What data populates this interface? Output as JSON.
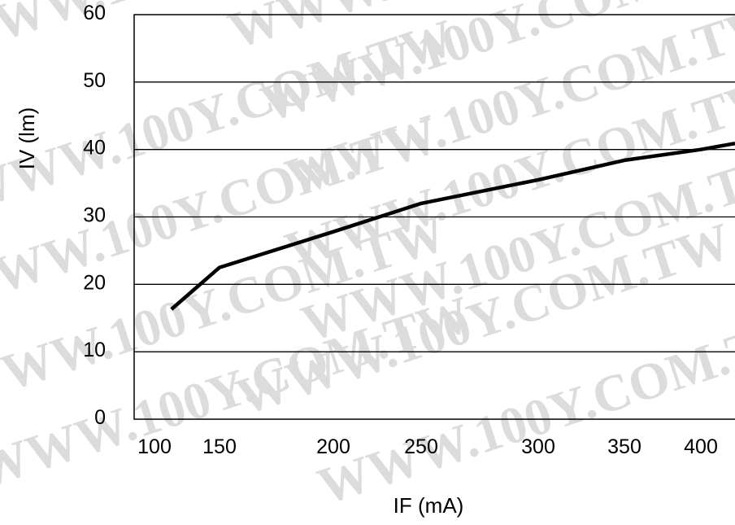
{
  "watermark_text": "WWW.100Y.COM.TW",
  "chart_data": {
    "type": "line",
    "xlabel": "IF (mA)",
    "ylabel": "IV (lm)",
    "xlim": [
      100,
      400
    ],
    "ylim": [
      0,
      60
    ],
    "x_ticks": [
      "100",
      "150",
      "200",
      "250",
      "300",
      "350",
      "400"
    ],
    "y_ticks": [
      "0",
      "10",
      "20",
      "30",
      "40",
      "50",
      "60"
    ],
    "grid": "horizontal",
    "series": [
      {
        "x": [
          113,
          150,
          200,
          250,
          300,
          350,
          400,
          425
        ],
        "y": [
          16.3,
          22.5,
          27.8,
          32.0,
          35.5,
          38.4,
          40.0,
          40.9
        ],
        "color": "#000000"
      }
    ]
  }
}
